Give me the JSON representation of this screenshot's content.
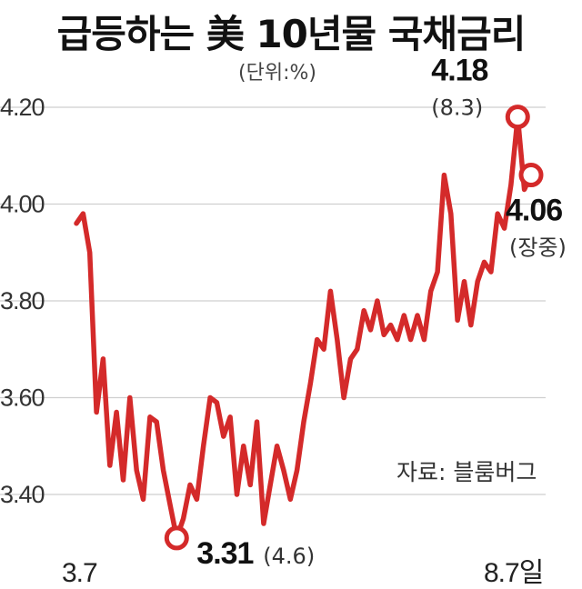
{
  "chart_data": {
    "type": "line",
    "title": "급등하는 美 10년물 국채금리",
    "unit_label": "(단위:%)",
    "source": "자료: 블룸버그",
    "ylim": [
      3.3,
      4.25
    ],
    "yticks": [
      3.4,
      3.6,
      3.8,
      4.0,
      4.2
    ],
    "ytick_labels": [
      "3.40",
      "3.60",
      "3.80",
      "4.00",
      "4.20"
    ],
    "x_start_label": "3.7",
    "x_end_label": "8.7일",
    "grid": true,
    "line_color": "#d42a2a",
    "series": [
      {
        "values": [
          3.96,
          3.98,
          3.9,
          3.57,
          3.68,
          3.46,
          3.57,
          3.43,
          3.6,
          3.45,
          3.39,
          3.56,
          3.55,
          3.45,
          3.38,
          3.31,
          3.35,
          3.42,
          3.39,
          3.5,
          3.6,
          3.59,
          3.52,
          3.56,
          3.4,
          3.5,
          3.42,
          3.55,
          3.34,
          3.42,
          3.5,
          3.45,
          3.39,
          3.45,
          3.55,
          3.63,
          3.72,
          3.7,
          3.82,
          3.72,
          3.6,
          3.68,
          3.7,
          3.78,
          3.74,
          3.8,
          3.73,
          3.75,
          3.72,
          3.77,
          3.72,
          3.77,
          3.72,
          3.82,
          3.86,
          4.06,
          3.98,
          3.76,
          3.84,
          3.75,
          3.84,
          3.88,
          3.86,
          3.98,
          3.95,
          4.04,
          4.18,
          4.03,
          4.06
        ]
      }
    ],
    "annotations": [
      {
        "kind": "low",
        "index": 15,
        "value_label": "3.31",
        "date_label": "(4.6)"
      },
      {
        "kind": "high",
        "index": 66,
        "value_label": "4.18",
        "date_label": "(8.3)"
      },
      {
        "kind": "current",
        "index": 68,
        "value_label": "4.06",
        "date_label": "(장중)"
      }
    ]
  }
}
